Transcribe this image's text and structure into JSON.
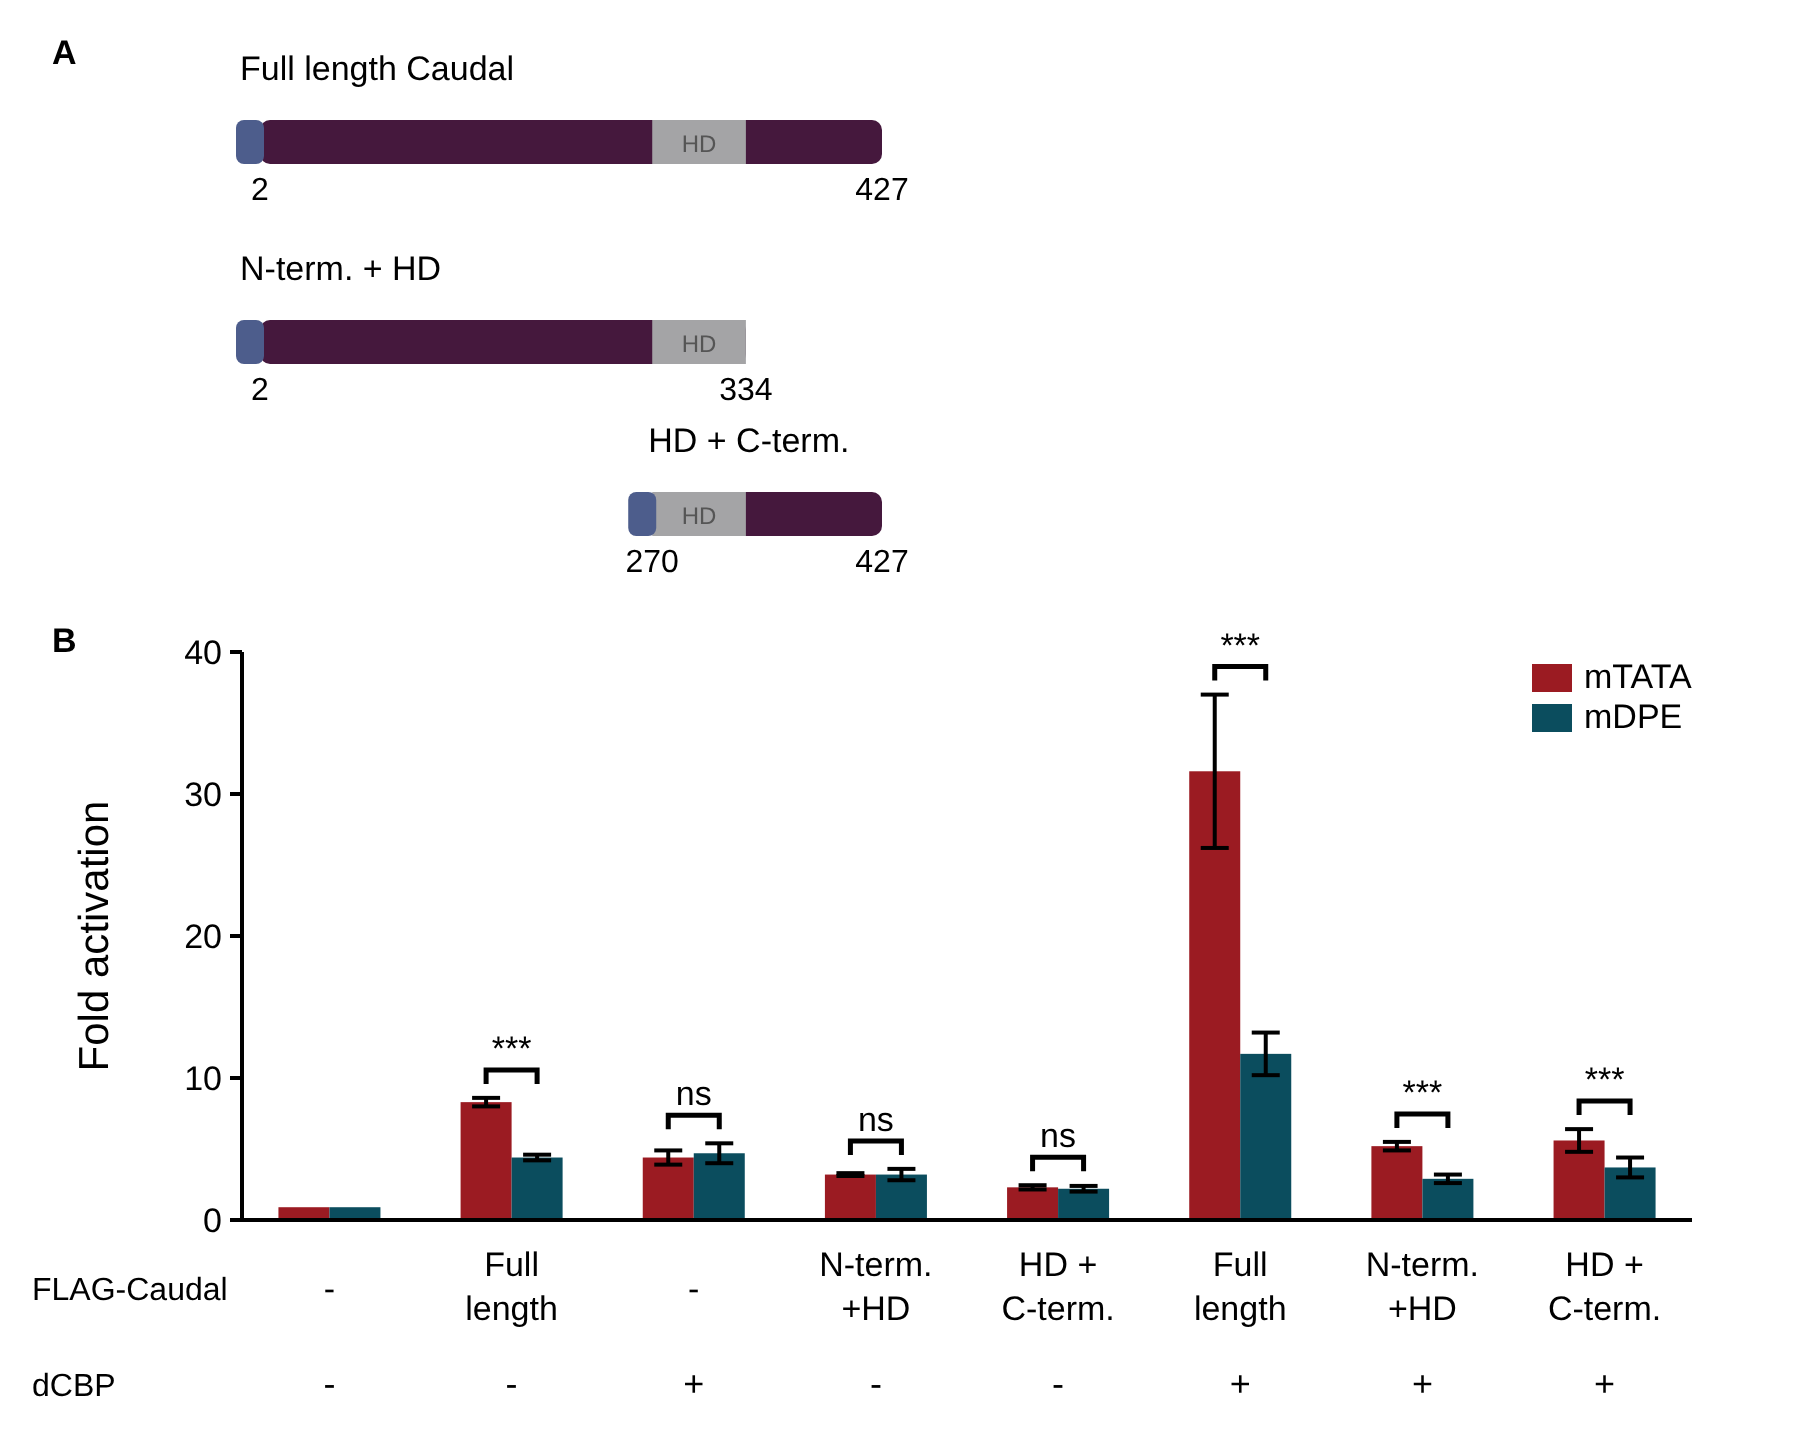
{
  "chart_data": [
    {
      "type": "other",
      "title": "A",
      "annotations": [
        "Full length Caudal",
        "2",
        "427",
        "N-term. + HD",
        "2",
        "334",
        "HD + C-term.",
        "270",
        "427",
        "HD",
        "HD",
        "HD"
      ]
    },
    {
      "type": "bar",
      "title": "B",
      "ylabel": "Fold activation",
      "xlabel": "FLAG-Caudal",
      "categories": [
        "-",
        "Full\nlength",
        "-",
        "N-term.\n+HD",
        "HD +\nC-term.",
        "Full\nlength",
        "N-term.\n+HD",
        "HD +\nC-term."
      ],
      "series": [
        {
          "name": "mTATA",
          "color": "#9b1b22",
          "values": [
            0.9,
            8.3,
            4.4,
            3.2,
            2.3,
            31.6,
            5.2,
            5.6
          ],
          "errors": [
            null,
            0.3,
            0.5,
            0.1,
            0.15,
            5.4,
            0.3,
            0.8
          ]
        },
        {
          "name": "mDPE",
          "color": "#0b4d5e",
          "values": [
            0.9,
            4.4,
            4.7,
            3.2,
            2.2,
            11.7,
            2.9,
            3.7
          ],
          "errors": [
            null,
            0.2,
            0.7,
            0.4,
            0.2,
            1.5,
            0.3,
            0.7
          ]
        }
      ],
      "ylim": [
        0,
        40
      ],
      "yticks": [
        0,
        10,
        20,
        30,
        40
      ],
      "grid": false,
      "legend": "top right",
      "annotations": [
        "***",
        "ns",
        "ns",
        "ns",
        "***",
        "***",
        "***",
        "dCBP",
        "-",
        "-",
        "+",
        "-",
        "-",
        "+",
        "+",
        "+"
      ]
    }
  ]
}
